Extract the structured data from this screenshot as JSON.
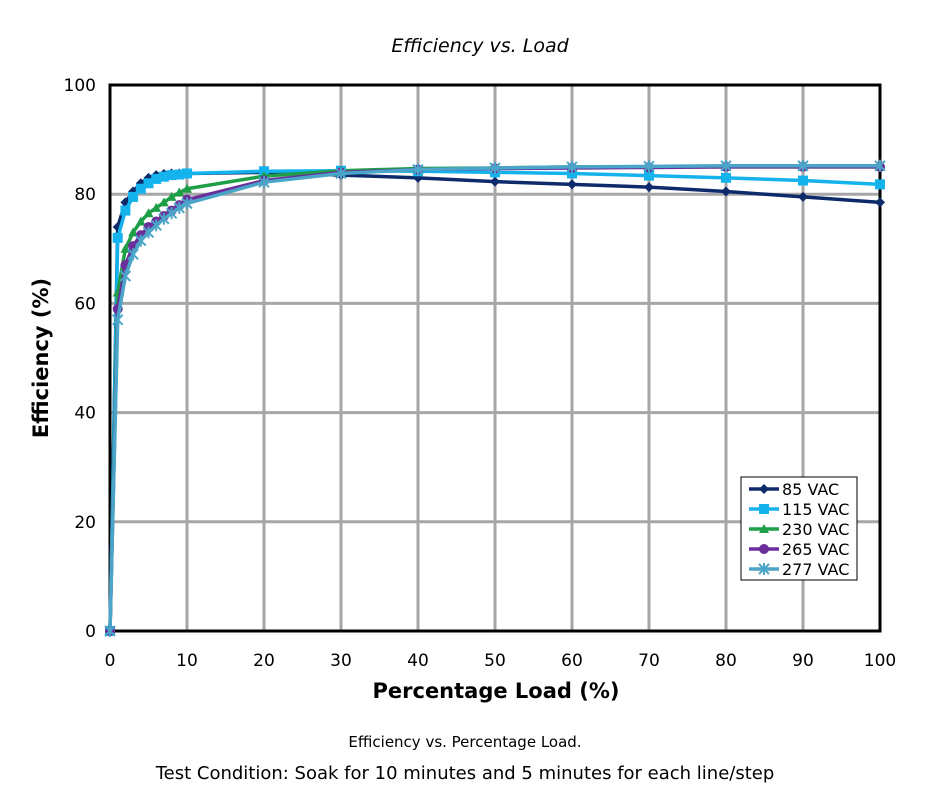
{
  "chart_data": {
    "type": "line",
    "title": "Efficiency vs. Load",
    "xlabel": "Percentage Load (%)",
    "ylabel": "Efficiency (%)",
    "xlim": [
      0,
      100
    ],
    "ylim": [
      0,
      100
    ],
    "grid": true,
    "legend_position": "bottom-right",
    "x_ticks": [
      "0",
      "10",
      "20",
      "30",
      "40",
      "50",
      "60",
      "70",
      "80",
      "90",
      "100"
    ],
    "y_ticks": [
      "0",
      "20",
      "40",
      "60",
      "80",
      "100"
    ],
    "x": [
      0,
      1,
      2,
      3,
      4,
      5,
      6,
      7,
      8,
      9,
      10,
      20,
      30,
      40,
      50,
      60,
      70,
      80,
      90,
      100
    ],
    "series": [
      {
        "name": "85 VAC",
        "color": "#0d2b6b",
        "marker": "diamond",
        "values": [
          0,
          74,
          78.5,
          80.5,
          82,
          83,
          83.5,
          83.7,
          83.8,
          83.8,
          83.8,
          84.0,
          83.5,
          83.0,
          82.3,
          81.8,
          81.3,
          80.5,
          79.5,
          78.5
        ]
      },
      {
        "name": "115 VAC",
        "color": "#14b3ee",
        "marker": "square",
        "values": [
          0,
          72,
          77,
          79.5,
          81,
          82,
          82.8,
          83.2,
          83.5,
          83.6,
          83.8,
          84.2,
          84.3,
          84.2,
          84.0,
          83.8,
          83.4,
          83.0,
          82.5,
          81.8
        ]
      },
      {
        "name": "230 VAC",
        "color": "#1f9e48",
        "marker": "triangle",
        "values": [
          0,
          62,
          70,
          73,
          75,
          76.5,
          77.5,
          78.5,
          79.5,
          80.3,
          81,
          83.3,
          84.3,
          84.7,
          84.8,
          85.0,
          85.0,
          85.0,
          85.0,
          85.0
        ]
      },
      {
        "name": "265 VAC",
        "color": "#6a2f9a",
        "marker": "circle",
        "values": [
          0,
          59,
          67,
          70.5,
          72.5,
          74,
          75,
          76,
          77,
          78,
          79,
          82.5,
          84,
          84.5,
          84.7,
          84.8,
          84.9,
          85.0,
          85.0,
          85.0
        ]
      },
      {
        "name": "277 VAC",
        "color": "#4aa5c8",
        "marker": "star",
        "values": [
          0,
          57,
          65,
          69,
          71.5,
          73,
          74.3,
          75.5,
          76.5,
          77.5,
          78.3,
          82.2,
          83.8,
          84.5,
          84.8,
          85.0,
          85.1,
          85.2,
          85.2,
          85.2
        ]
      }
    ]
  },
  "captions": {
    "line1": "Efficiency vs. Percentage Load.",
    "line2": "Test Condition: Soak for 10 minutes and 5 minutes for each line/step"
  }
}
